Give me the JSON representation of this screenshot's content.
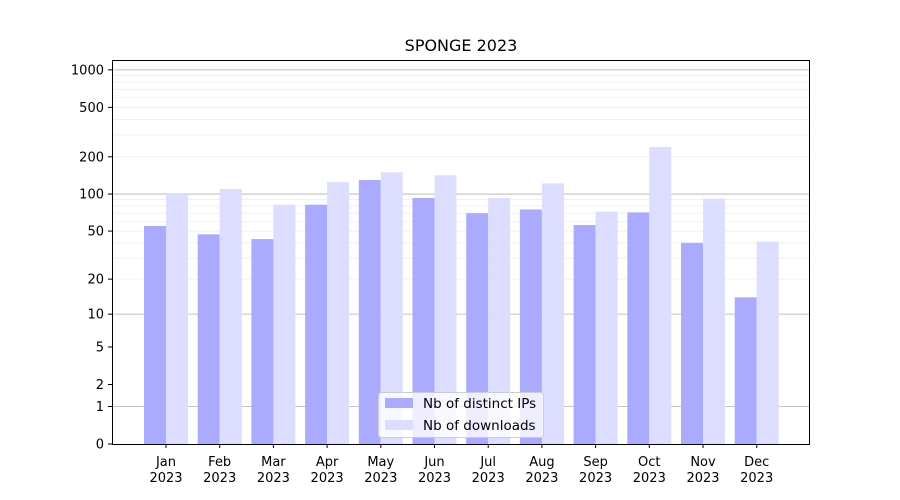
{
  "chart_data": {
    "type": "bar",
    "title": "SPONGE 2023",
    "xlabel": "",
    "ylabel": "",
    "yscale": "symlog",
    "ylim": [
      0,
      1200
    ],
    "yticks": [
      0,
      1,
      2,
      5,
      10,
      20,
      50,
      100,
      200,
      500,
      1000
    ],
    "categories": [
      {
        "month": "Jan",
        "year": "2023"
      },
      {
        "month": "Feb",
        "year": "2023"
      },
      {
        "month": "Mar",
        "year": "2023"
      },
      {
        "month": "Apr",
        "year": "2023"
      },
      {
        "month": "May",
        "year": "2023"
      },
      {
        "month": "Jun",
        "year": "2023"
      },
      {
        "month": "Jul",
        "year": "2023"
      },
      {
        "month": "Aug",
        "year": "2023"
      },
      {
        "month": "Sep",
        "year": "2023"
      },
      {
        "month": "Oct",
        "year": "2023"
      },
      {
        "month": "Nov",
        "year": "2023"
      },
      {
        "month": "Dec",
        "year": "2023"
      }
    ],
    "series": [
      {
        "name": "Nb of distinct IPs",
        "color": "#aaaaff",
        "values": [
          55,
          47,
          43,
          82,
          130,
          93,
          70,
          75,
          56,
          71,
          40,
          14
        ]
      },
      {
        "name": "Nb of downloads",
        "color": "#ddddff",
        "values": [
          100,
          110,
          82,
          125,
          150,
          142,
          93,
          122,
          72,
          240,
          92,
          41
        ]
      }
    ],
    "legend": "lower-center",
    "grid": true
  }
}
